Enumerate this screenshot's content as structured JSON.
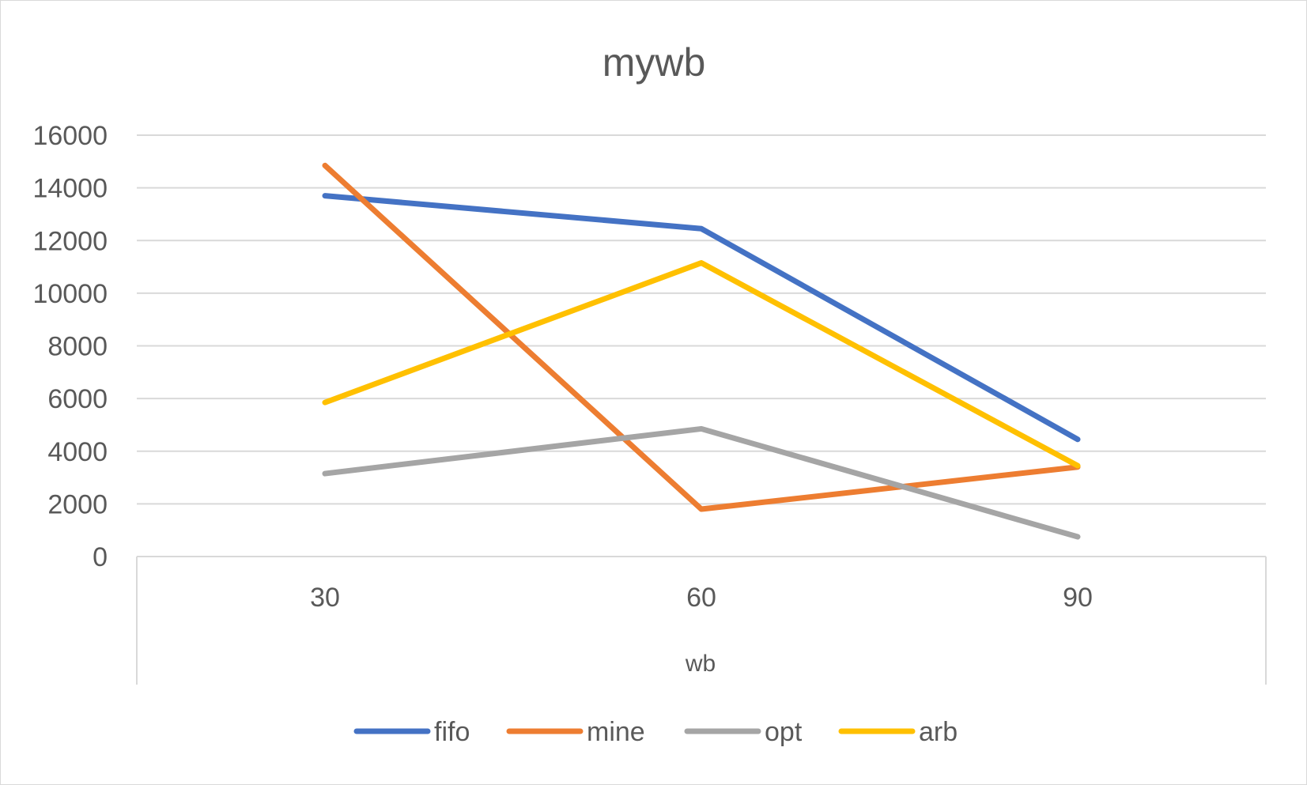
{
  "chart_data": {
    "type": "line",
    "title": "mywb",
    "xlabel": "wb",
    "ylabel": "",
    "categories": [
      "30",
      "60",
      "90"
    ],
    "ylim": [
      0,
      16000
    ],
    "yticks": [
      0,
      2000,
      4000,
      6000,
      8000,
      10000,
      12000,
      14000,
      16000
    ],
    "grid": true,
    "legend": "bottom",
    "series": [
      {
        "name": "fifo",
        "color": "#4472C4",
        "values": [
          13700,
          12450,
          4450
        ]
      },
      {
        "name": "mine",
        "color": "#ED7D31",
        "values": [
          14850,
          1800,
          3400
        ]
      },
      {
        "name": "opt",
        "color": "#A5A5A5",
        "values": [
          3150,
          4850,
          750
        ]
      },
      {
        "name": "arb",
        "color": "#FFC000",
        "values": [
          5850,
          11150,
          3450
        ]
      }
    ]
  }
}
